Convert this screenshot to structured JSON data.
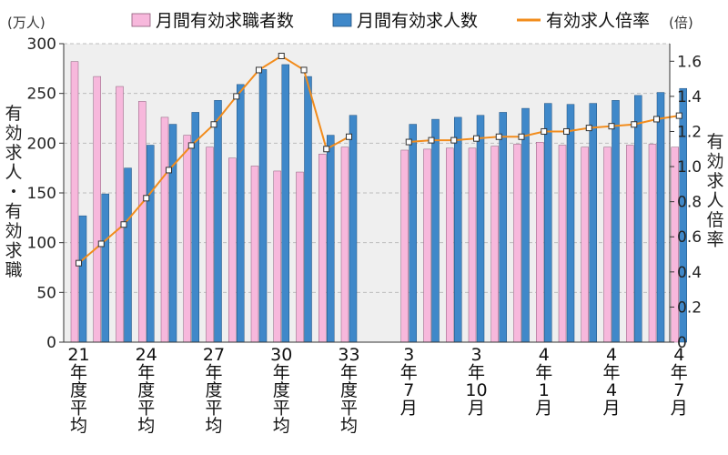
{
  "chart_data": {
    "type": "bar+line",
    "left_unit": "(万人)",
    "right_unit": "(倍)",
    "left_axis_title": "有効求人・有効求職",
    "right_axis_title": "有効求人倍率",
    "left_ylim": [
      0,
      300
    ],
    "left_ticks": [
      "0",
      "50",
      "100",
      "150",
      "200",
      "250",
      "300"
    ],
    "right_ylim": [
      0,
      1.7
    ],
    "right_ticks": [
      "0",
      "0.2",
      "0.4",
      "0.6",
      "0.8",
      "1.0",
      "1.2",
      "1.4",
      "1.6"
    ],
    "legend": [
      {
        "name": "月間有効求職者数",
        "color": "#f7b8dc",
        "kind": "bar"
      },
      {
        "name": "月間有効求人数",
        "color": "#3f88c9",
        "kind": "bar"
      },
      {
        "name": "有効求人倍率",
        "color": "#f28c1c",
        "kind": "line"
      }
    ],
    "annual_group": {
      "label": "年度平均",
      "seekers": [
        282,
        267,
        257,
        242,
        226,
        208,
        196,
        185,
        177,
        172,
        171,
        189,
        196
      ],
      "openings": [
        127,
        149,
        175,
        198,
        219,
        231,
        243,
        259,
        274,
        279,
        267,
        208,
        228
      ],
      "ratio": [
        0.45,
        0.56,
        0.67,
        0.82,
        0.98,
        1.12,
        1.24,
        1.4,
        1.55,
        1.63,
        1.55,
        1.1,
        1.17
      ]
    },
    "monthly_group": {
      "seekers": [
        193,
        194,
        195,
        195,
        197,
        199,
        201,
        198,
        196,
        196,
        198,
        199,
        196
      ],
      "openings": [
        219,
        224,
        226,
        228,
        231,
        235,
        240,
        239,
        240,
        243,
        248,
        251,
        255
      ],
      "ratio": [
        1.14,
        1.15,
        1.15,
        1.16,
        1.17,
        1.17,
        1.2,
        1.2,
        1.22,
        1.23,
        1.24,
        1.27,
        1.29
      ]
    },
    "x_labels": [
      {
        "num": "21",
        "suffix": "年度平均",
        "bar": 0
      },
      {
        "num": "24",
        "suffix": "年度平均",
        "bar": 3
      },
      {
        "num": "27",
        "suffix": "年度平均",
        "bar": 6
      },
      {
        "num": "30",
        "suffix": "年度平均",
        "bar": 9
      },
      {
        "num": "33",
        "suffix": "年度平均",
        "bar": 12
      },
      {
        "num": "3",
        "suffix": "年",
        "month": "7",
        "tail": "月",
        "bar": 13
      },
      {
        "num": "3",
        "suffix": "年",
        "month": "10",
        "tail": "月",
        "bar": 16
      },
      {
        "num": "4",
        "suffix": "年",
        "month": "1",
        "tail": "月",
        "bar": 19
      },
      {
        "num": "4",
        "suffix": "年",
        "month": "4",
        "tail": "月",
        "bar": 22
      },
      {
        "num": "4",
        "suffix": "年",
        "month": "7",
        "tail": "月",
        "bar": 25
      }
    ]
  }
}
